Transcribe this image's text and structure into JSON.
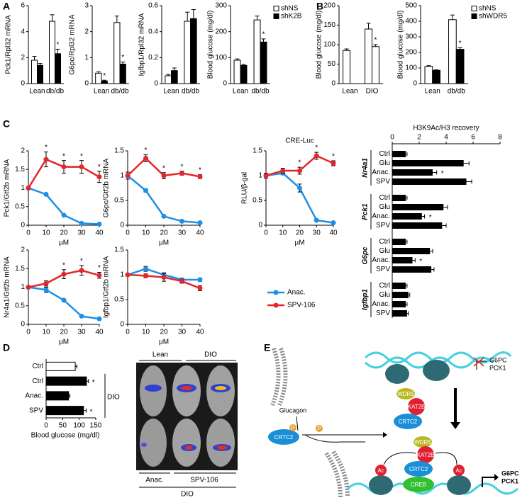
{
  "panels": [
    "A",
    "B",
    "C",
    "D",
    "E"
  ],
  "chart_data": [
    {
      "type": "bar",
      "ylabel": "Pck1/Rpl32 mRNA",
      "categories": [
        "Lean",
        "db/db"
      ],
      "ylim": [
        0,
        6
      ],
      "yticks": [
        0,
        2,
        4,
        6
      ],
      "series": [
        {
          "color": "#ffffff",
          "values": [
            1.8,
            4.8
          ],
          "errors": [
            0.3,
            0.5
          ]
        },
        {
          "color": "#000000",
          "values": [
            1.4,
            2.3
          ],
          "errors": [
            0.15,
            0.35
          ],
          "stars": [
            null,
            "*"
          ]
        }
      ]
    },
    {
      "type": "bar",
      "ylabel": "G6pc/Rpl32 mRNA",
      "categories": [
        "Lean",
        "db/db"
      ],
      "ylim": [
        0,
        3
      ],
      "yticks": [
        0,
        1,
        2,
        3
      ],
      "series": [
        {
          "color": "#ffffff",
          "values": [
            0.4,
            2.35
          ],
          "errors": [
            0.05,
            0.25
          ]
        },
        {
          "color": "#000000",
          "values": [
            0.1,
            0.75
          ],
          "errors": [
            0.03,
            0.08
          ],
          "stars": [
            "*",
            "*"
          ]
        }
      ]
    },
    {
      "type": "bar",
      "ylabel": "Igfbp1/Rpl32 mRNA",
      "categories": [
        "Lean",
        "db/db"
      ],
      "ylim": [
        0,
        0.6
      ],
      "yticks": [
        0,
        0.2,
        0.4,
        0.6
      ],
      "series": [
        {
          "color": "#ffffff",
          "values": [
            0.06,
            0.48
          ],
          "errors": [
            0.01,
            0.07
          ]
        },
        {
          "color": "#000000",
          "values": [
            0.1,
            0.5
          ],
          "errors": [
            0.02,
            0.07
          ]
        }
      ]
    },
    {
      "type": "bar",
      "ylabel": "Blood glucose (mg/dl)",
      "categories": [
        "Lean",
        "db/db"
      ],
      "ylim": [
        0,
        300
      ],
      "yticks": [
        0,
        100,
        200,
        300
      ],
      "legend": true,
      "series": [
        {
          "name": "shNS",
          "color": "#ffffff",
          "values": [
            90,
            245
          ],
          "errors": [
            5,
            15
          ]
        },
        {
          "name": "shK2B",
          "color": "#000000",
          "values": [
            70,
            160
          ],
          "errors": [
            3,
            12
          ],
          "stars": [
            null,
            "*"
          ]
        }
      ]
    },
    {
      "type": "bar",
      "ylabel": "Blood glucose (mg/dl)",
      "categories": [
        "Lean",
        "DIO"
      ],
      "ylim": [
        0,
        200
      ],
      "yticks": [
        0,
        50,
        100,
        150,
        200
      ],
      "series": [
        {
          "color": "#ffffff",
          "values": [
            85,
            140
          ],
          "errors": [
            4,
            15
          ]
        },
        {
          "color": "#ffffff",
          "values": [
            null,
            95
          ],
          "errors": [
            null,
            5
          ],
          "stars": [
            null,
            "*"
          ]
        }
      ]
    },
    {
      "type": "bar",
      "ylabel": "Blood glucose (mg/dl)",
      "categories": [
        "Lean",
        "db/db"
      ],
      "ylim": [
        0,
        500
      ],
      "yticks": [
        0,
        100,
        200,
        300,
        400,
        500
      ],
      "legend": true,
      "series": [
        {
          "name": "shNS",
          "color": "#ffffff",
          "values": [
            110,
            410
          ],
          "errors": [
            5,
            30
          ]
        },
        {
          "name": "shWDR5",
          "color": "#000000",
          "values": [
            85,
            220
          ],
          "errors": [
            3,
            10
          ],
          "stars": [
            null,
            "*"
          ]
        }
      ]
    },
    {
      "type": "line",
      "ylabel": "Pck1/Gtf2b mRNA",
      "xlabel": "µM",
      "x": [
        0,
        10,
        20,
        30,
        40
      ],
      "xlim": [
        0,
        40
      ],
      "xticks": [
        0,
        10,
        20,
        30,
        40
      ],
      "ylim": [
        0,
        2
      ],
      "yticks": [
        0,
        0.5,
        1,
        1.5,
        2
      ],
      "series": [
        {
          "name": "Anac.",
          "color": "#1e8fe6",
          "values": [
            1,
            0.83,
            0.27,
            0.05,
            0.03
          ],
          "errors": [
            0,
            0.03,
            0.02,
            0.01,
            0.01
          ]
        },
        {
          "name": "SPV-106",
          "color": "#e4262b",
          "values": [
            1,
            1.77,
            1.57,
            1.57,
            1.3
          ],
          "errors": [
            0,
            0.2,
            0.17,
            0.17,
            0.15
          ],
          "stars": [
            null,
            "*",
            "*",
            "*",
            "*"
          ]
        }
      ]
    },
    {
      "type": "line",
      "ylabel": "G6pc/Gtf2b mRNA",
      "xlabel": "µM",
      "x": [
        0,
        10,
        20,
        30,
        40
      ],
      "xlim": [
        0,
        40
      ],
      "xticks": [
        0,
        10,
        20,
        30,
        40
      ],
      "ylim": [
        0,
        1.5
      ],
      "yticks": [
        0,
        0.5,
        1,
        1.5
      ],
      "series": [
        {
          "name": "Anac.",
          "color": "#1e8fe6",
          "values": [
            1,
            0.7,
            0.18,
            0.08,
            0.05
          ],
          "errors": [
            0,
            0.03,
            0.02,
            0.01,
            0.01
          ]
        },
        {
          "name": "SPV-106",
          "color": "#e4262b",
          "values": [
            1,
            1.35,
            1,
            1.05,
            0.98
          ],
          "errors": [
            0.07,
            0.07,
            0.06,
            0.04,
            0.04
          ],
          "stars": [
            null,
            "*",
            "*",
            "*",
            "*"
          ]
        }
      ]
    },
    {
      "type": "line",
      "title": "CRE-Luc",
      "ylabel": "RLU/β-gal",
      "xlabel": "µM",
      "x": [
        0,
        10,
        20,
        30,
        40
      ],
      "xlim": [
        0,
        40
      ],
      "xticks": [
        0,
        10,
        20,
        30,
        40
      ],
      "ylim": [
        0,
        1.5
      ],
      "yticks": [
        0,
        0.5,
        1,
        1.5
      ],
      "series": [
        {
          "name": "Anac.",
          "color": "#1e8fe6",
          "values": [
            1,
            1.05,
            0.75,
            0.1,
            0.05
          ],
          "errors": [
            0,
            0.03,
            0.08,
            0.01,
            0.01
          ]
        },
        {
          "name": "SPV-106",
          "color": "#e4262b",
          "values": [
            1,
            1.1,
            1.1,
            1.4,
            1.25
          ],
          "errors": [
            0.05,
            0.05,
            0.07,
            0.07,
            0.05
          ],
          "stars": [
            null,
            null,
            "*",
            "*",
            "*"
          ]
        }
      ]
    },
    {
      "type": "line",
      "ylabel": "Nr4a1/Gtf2b mRNA",
      "xlabel": "µM",
      "x": [
        0,
        10,
        20,
        30,
        40
      ],
      "xlim": [
        0,
        40
      ],
      "xticks": [
        0,
        10,
        20,
        30,
        40
      ],
      "ylim": [
        0,
        2
      ],
      "yticks": [
        0,
        0.5,
        1,
        1.5,
        2
      ],
      "series": [
        {
          "name": "Anac.",
          "color": "#1e8fe6",
          "values": [
            1,
            0.93,
            0.65,
            0.22,
            0.15
          ],
          "errors": [
            0,
            0.07,
            0.03,
            0.02,
            0.02
          ]
        },
        {
          "name": "SPV-106",
          "color": "#e4262b",
          "values": [
            1,
            1.1,
            1.35,
            1.45,
            1.32
          ],
          "errors": [
            0,
            0.07,
            0.12,
            0.13,
            0.08
          ],
          "stars": [
            null,
            null,
            "*",
            "*",
            "*"
          ]
        }
      ]
    },
    {
      "type": "line",
      "ylabel": "Igfbp1/Gtf2b mRNA",
      "xlabel": "µM",
      "x": [
        0,
        10,
        20,
        30,
        40
      ],
      "xlim": [
        0,
        40
      ],
      "xticks": [
        0,
        10,
        20,
        30,
        40
      ],
      "ylim": [
        0,
        1.5
      ],
      "yticks": [
        0,
        0.5,
        1,
        1.5
      ],
      "legend": true,
      "series": [
        {
          "name": "Anac.",
          "color": "#1e8fe6",
          "values": [
            1,
            1.12,
            1,
            0.9,
            0.9
          ],
          "errors": [
            0,
            0.05,
            0.04,
            0.03,
            0.03
          ]
        },
        {
          "name": "SPV-106",
          "color": "#e4262b",
          "values": [
            1,
            0.98,
            0.95,
            0.87,
            0.73
          ],
          "errors": [
            0,
            0.04,
            0.08,
            0.04,
            0.05
          ]
        }
      ]
    },
    {
      "type": "hbar-groups",
      "title": "H3K9Ac/H3 recovery",
      "xlim": [
        0,
        8
      ],
      "xticks": [
        0,
        2,
        4,
        6,
        8
      ],
      "color": "#000000",
      "groups": [
        {
          "name": "Nr4a1",
          "categories": [
            "Ctrl",
            "Glu",
            "Anac.",
            "SPV"
          ],
          "values": [
            1,
            5.3,
            3,
            5.5
          ],
          "errors": [
            0.1,
            0.4,
            0.3,
            0.4
          ],
          "stars": [
            null,
            null,
            "*",
            null
          ]
        },
        {
          "name": "Pck1",
          "categories": [
            "Ctrl",
            "Glu",
            "Anac.",
            "SPV"
          ],
          "values": [
            1,
            3.8,
            2.2,
            3.7
          ],
          "errors": [
            0.1,
            0.3,
            0.2,
            0.3
          ],
          "stars": [
            null,
            null,
            "*",
            null
          ]
        },
        {
          "name": "G6pc",
          "categories": [
            "Ctrl",
            "Glu",
            "Anac.",
            "SPV"
          ],
          "values": [
            1,
            2.8,
            1.5,
            2.9
          ],
          "errors": [
            0.1,
            0.2,
            0.2,
            0.2
          ],
          "stars": [
            null,
            null,
            "*",
            null
          ]
        },
        {
          "name": "Igfbp1",
          "categories": [
            "Ctrl",
            "Glu",
            "Anac.",
            "SPV"
          ],
          "values": [
            1,
            1.2,
            1,
            1.1
          ],
          "errors": [
            0.1,
            0.1,
            0.1,
            0.1
          ]
        }
      ]
    },
    {
      "type": "hbar",
      "xlabel": "Blood glucose (mg/dl)",
      "xlim": [
        0,
        150
      ],
      "xticks": [
        0,
        50,
        100,
        150
      ],
      "categories": [
        "Ctrl",
        "Ctrl",
        "Anac.",
        "SPV"
      ],
      "values": [
        88,
        122,
        68,
        113
      ],
      "errors": [
        5,
        6,
        4,
        8
      ],
      "colors": [
        "#ffffff",
        "#000000",
        "#000000",
        "#000000"
      ],
      "stars": [
        null,
        "*",
        null,
        "*"
      ],
      "group_label": "DIO"
    }
  ],
  "image": {
    "labels": [
      "Lean",
      "DIO",
      "Anac.",
      "SPV-106",
      "DIO"
    ]
  },
  "diagram": {
    "labels": [
      "G6PC",
      "PCK1",
      "Glucagon",
      "CRTC2",
      "P",
      "P",
      "WDR5",
      "KAT2B",
      "CRTC2",
      "WDR5",
      "KAT2B",
      "CRTC2",
      "CREB",
      "Ac",
      "Ac",
      "G6PC",
      "PCK1"
    ]
  }
}
